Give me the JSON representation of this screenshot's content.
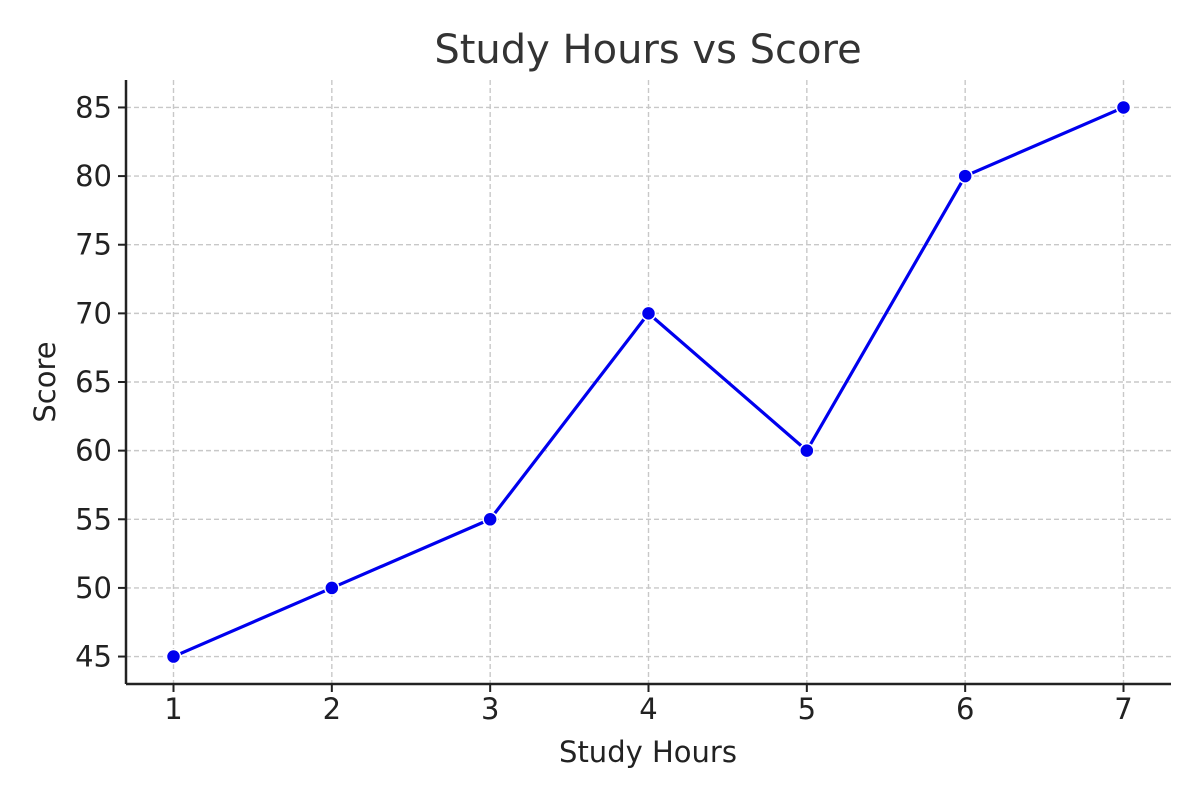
{
  "chart_data": {
    "type": "line",
    "title": "Study Hours vs Score",
    "xlabel": "Study Hours",
    "ylabel": "Score",
    "x": [
      1,
      2,
      3,
      4,
      5,
      6,
      7
    ],
    "series": [
      {
        "values": [
          45,
          50,
          55,
          70,
          60,
          80,
          85
        ]
      }
    ],
    "x_ticks": [
      "1",
      "2",
      "3",
      "4",
      "5",
      "6",
      "7"
    ],
    "y_ticks": [
      "45",
      "50",
      "55",
      "60",
      "65",
      "70",
      "75",
      "80",
      "85"
    ],
    "xlim": [
      0.7,
      7.3
    ],
    "ylim": [
      43,
      87
    ],
    "grid": true,
    "legend": "none",
    "colors": {
      "line": "#0000ee",
      "marker": "#0000ee",
      "marker_edge": "#ffffff",
      "grid": "#c8c8c8",
      "axis": "#222222"
    }
  }
}
